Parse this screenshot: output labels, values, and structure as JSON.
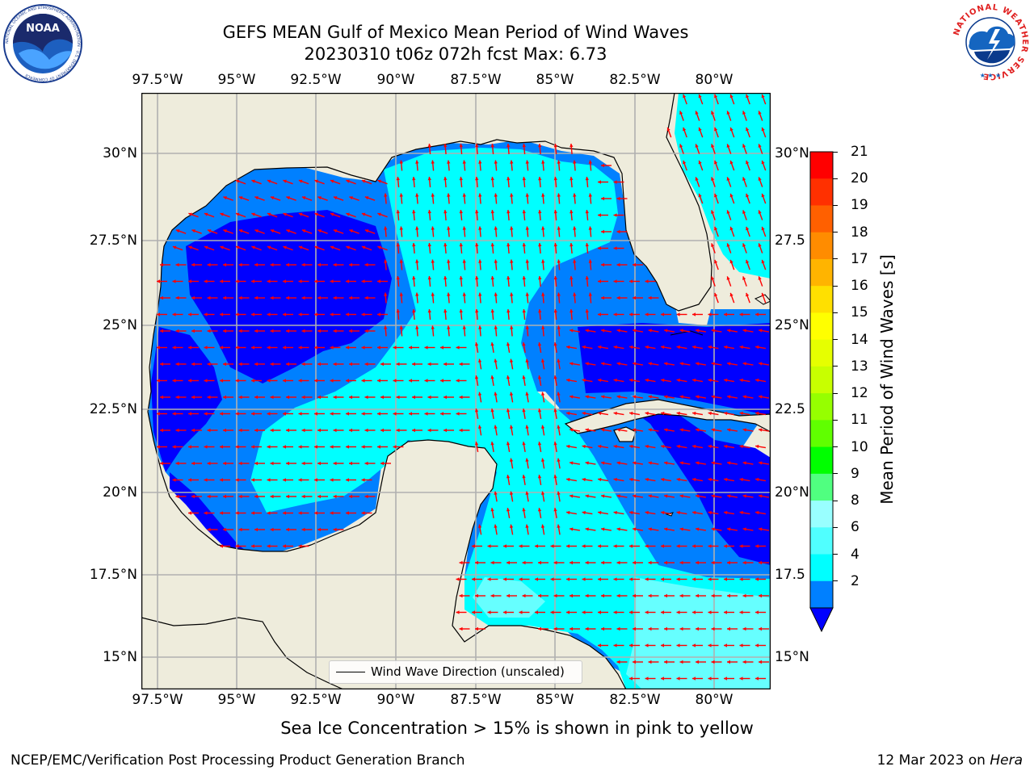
{
  "title": {
    "line1": "GEFS MEAN Gulf of Mexico Mean Period of Wind Waves",
    "line2": "20230310 t06z 072h fcst   Max: 6.73"
  },
  "logos": {
    "left": {
      "icon": "noaa-logo-icon",
      "ring_text": "NATIONAL OCEANIC AND ATMOSPHERIC ADMINISTRATION · U.S. DEPARTMENT OF COMMERCE",
      "center_text": "NOAA"
    },
    "right": {
      "icon": "nws-logo-icon",
      "ring_text": "NATIONAL WEATHER SERVICE"
    }
  },
  "map": {
    "lon_ticks": [
      "97.5°W",
      "95°W",
      "92.5°W",
      "90°W",
      "87.5°W",
      "85°W",
      "82.5°W",
      "80°W"
    ],
    "lat_ticks_left": [
      "30°N",
      "27.5°N",
      "25°N",
      "22.5°N",
      "20°N",
      "17.5°N",
      "15°N"
    ],
    "lat_ticks_right": [
      "30°N",
      "27.5",
      "25°N",
      "22.5",
      "20°N",
      "17.5",
      "15°N"
    ],
    "legend_label": "Wind Wave Direction (unscaled)",
    "colors": {
      "land": "#eeecdc",
      "band_2_4": "#0000ff",
      "band_4_6": "#0080ff",
      "band_6_8": "#00ffff",
      "band_8_9": "#66ffff",
      "arrow": "#ff0000",
      "grid": "#b0b0b0"
    }
  },
  "colorbar": {
    "label": "Mean Period of Wind Waves [s]",
    "ticks": [
      "21",
      "20",
      "19",
      "18",
      "17",
      "16",
      "15",
      "14",
      "13",
      "12",
      "11",
      "10",
      "9",
      "8",
      "6",
      "4",
      "2"
    ],
    "colors": [
      "#ff0000",
      "#ff3000",
      "#ff6000",
      "#ff8c00",
      "#ffb400",
      "#ffe000",
      "#ffff00",
      "#e6ff00",
      "#c8ff00",
      "#96ff00",
      "#60ff00",
      "#00ff00",
      "#50ff80",
      "#99ffff",
      "#50ffff",
      "#00ffff",
      "#0080ff"
    ],
    "extend_color": "#0000ff"
  },
  "footer": {
    "note": "Sea Ice Concentration > 15% is shown in pink to yellow",
    "left": "NCEP/EMC/Verification Post Processing Product Generation Branch",
    "right_prefix": "12 Mar 2023 on ",
    "right_host": "Hera"
  }
}
